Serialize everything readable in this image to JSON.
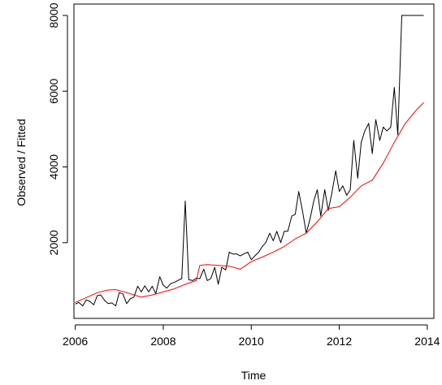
{
  "chart_data": {
    "type": "line",
    "title": "",
    "xlabel": "Time",
    "ylabel": "Observed / Fitted",
    "xlim": [
      2005.97,
      2014.15
    ],
    "ylim": [
      0,
      8300
    ],
    "x_ticks": [
      2006,
      2008,
      2010,
      2012,
      2014
    ],
    "x_tick_labels": [
      "2006",
      "2008",
      "2010",
      "2012",
      "2014"
    ],
    "y_ticks": [
      2000,
      4000,
      6000,
      8000
    ],
    "y_tick_labels": [
      "2000",
      "4000",
      "6000",
      "8000"
    ],
    "grid": false,
    "legend": "none",
    "series": [
      {
        "color": "#000000",
        "x": [
          2006.0,
          2006.08,
          2006.17,
          2006.25,
          2006.33,
          2006.42,
          2006.5,
          2006.58,
          2006.67,
          2006.75,
          2006.83,
          2006.92,
          2007.0,
          2007.08,
          2007.17,
          2007.25,
          2007.33,
          2007.42,
          2007.5,
          2007.58,
          2007.67,
          2007.75,
          2007.83,
          2007.92,
          2008.0,
          2008.08,
          2008.17,
          2008.25,
          2008.33,
          2008.42,
          2008.5,
          2008.58,
          2008.67,
          2008.75,
          2008.83,
          2008.92,
          2009.0,
          2009.08,
          2009.17,
          2009.25,
          2009.33,
          2009.42,
          2009.5,
          2009.58,
          2009.67,
          2009.75,
          2009.83,
          2009.92,
          2010.0,
          2010.08,
          2010.17,
          2010.25,
          2010.33,
          2010.42,
          2010.5,
          2010.58,
          2010.67,
          2010.75,
          2010.83,
          2010.92,
          2011.0,
          2011.08,
          2011.17,
          2011.25,
          2011.33,
          2011.42,
          2011.5,
          2011.58,
          2011.67,
          2011.75,
          2011.83,
          2011.92,
          2012.0,
          2012.08,
          2012.17,
          2012.25,
          2012.33,
          2012.42,
          2012.5,
          2012.58,
          2012.67,
          2012.75,
          2012.83,
          2012.92,
          2013.0,
          2013.08,
          2013.17,
          2013.25,
          2013.33,
          2013.42,
          2013.5,
          2013.58,
          2013.67,
          2013.75,
          2013.83,
          2013.92
        ],
        "values": [
          380,
          420,
          330,
          490,
          450,
          360,
          600,
          620,
          470,
          390,
          410,
          330,
          680,
          650,
          390,
          520,
          560,
          850,
          700,
          860,
          700,
          850,
          650,
          1100,
          880,
          800,
          920,
          950,
          1000,
          1050,
          3100,
          1020,
          1000,
          1060,
          1050,
          1300,
          1000,
          1050,
          1350,
          900,
          1350,
          1280,
          1750,
          1700,
          1700,
          1650,
          1700,
          1750,
          1550,
          1650,
          1750,
          1900,
          2000,
          2250,
          2050,
          2300,
          2000,
          2300,
          2300,
          2700,
          2750,
          3350,
          2800,
          2250,
          2600,
          3100,
          3400,
          2700,
          3400,
          2850,
          3300,
          3900,
          3350,
          3500,
          3250,
          3400,
          4700,
          3700,
          4650,
          4950,
          5150,
          4350,
          5250,
          4700,
          5050,
          4950,
          5050,
          6100,
          4850,
          8000,
          8000,
          8000,
          8000,
          8000,
          8000,
          8000
        ]
      },
      {
        "color": "#ff0000",
        "x": [
          2006.0,
          2006.25,
          2006.5,
          2006.75,
          2006.92,
          2007.17,
          2007.5,
          2007.75,
          2008.0,
          2008.25,
          2008.5,
          2008.75,
          2008.83,
          2009.0,
          2009.25,
          2009.5,
          2009.75,
          2010.0,
          2010.25,
          2010.5,
          2010.75,
          2011.0,
          2011.25,
          2011.5,
          2011.75,
          2012.0,
          2012.25,
          2012.5,
          2012.75,
          2013.0,
          2013.25,
          2013.5,
          2013.75,
          2013.92
        ],
        "values": [
          420,
          550,
          680,
          750,
          760,
          680,
          560,
          620,
          700,
          780,
          900,
          1000,
          1400,
          1420,
          1400,
          1380,
          1300,
          1500,
          1620,
          1750,
          1900,
          2100,
          2250,
          2550,
          2900,
          2950,
          3200,
          3500,
          3650,
          4100,
          4650,
          5150,
          5500,
          5700
        ]
      }
    ]
  }
}
